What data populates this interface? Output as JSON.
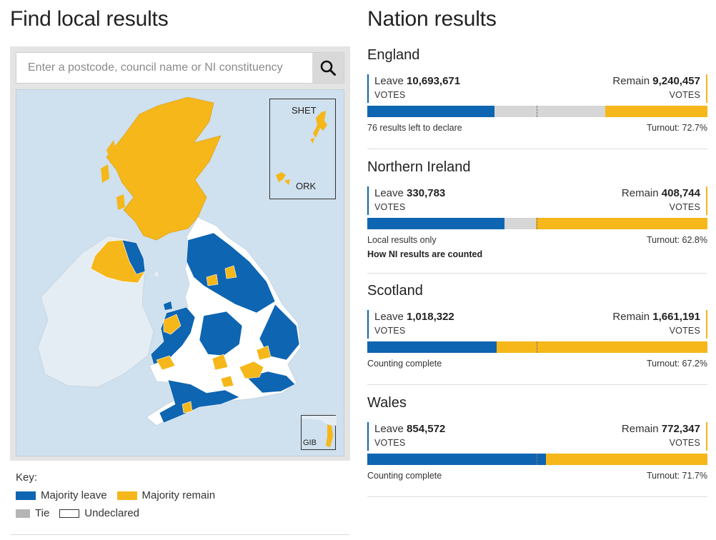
{
  "local": {
    "title": "Find local results",
    "search_placeholder": "Enter a postcode, council name or NI constituency",
    "search_icon": "search-icon",
    "insets": {
      "shetland": "SHET",
      "orkney": "ORK",
      "gibraltar": "GIB"
    },
    "key": {
      "title": "Key:",
      "items": [
        {
          "label": "Majority leave",
          "color": "#0e65b1"
        },
        {
          "label": "Majority remain",
          "color": "#f5b719"
        },
        {
          "label": "Tie",
          "color": "#b5b5b5"
        },
        {
          "label": "Undeclared",
          "color": "#ffffff"
        }
      ]
    }
  },
  "nations": {
    "title": "Nation results",
    "items": [
      {
        "name": "England",
        "leave_label": "Leave",
        "leave_votes": "10,693,671",
        "remain_label": "Remain",
        "remain_votes": "9,240,457",
        "votes_label": "VOTES",
        "leave_fraction": 0.374,
        "remain_fraction": 0.3,
        "status": "76 results left to declare",
        "turnout": "Turnout: 72.7%"
      },
      {
        "name": "Northern Ireland",
        "leave_label": "Leave",
        "leave_votes": "330,783",
        "remain_label": "Remain",
        "remain_votes": "408,744",
        "votes_label": "VOTES",
        "leave_fraction": 0.403,
        "remain_fraction": 0.504,
        "status": "Local results only",
        "link": "How NI results are counted",
        "turnout": "Turnout: 62.8%"
      },
      {
        "name": "Scotland",
        "leave_label": "Leave",
        "leave_votes": "1,018,322",
        "remain_label": "Remain",
        "remain_votes": "1,661,191",
        "votes_label": "VOTES",
        "leave_fraction": 0.38,
        "remain_fraction": 0.62,
        "status": "Counting complete",
        "turnout": "Turnout: 67.2%"
      },
      {
        "name": "Wales",
        "leave_label": "Leave",
        "leave_votes": "854,572",
        "remain_label": "Remain",
        "remain_votes": "772,347",
        "votes_label": "VOTES",
        "leave_fraction": 0.525,
        "remain_fraction": 0.475,
        "status": "Counting complete",
        "turnout": "Turnout: 71.7%"
      }
    ]
  }
}
